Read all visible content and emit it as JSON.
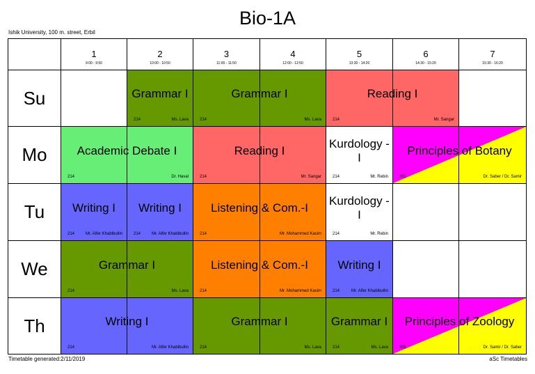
{
  "title": "Bio-1A",
  "institution": "Ishik University, 100 m. street, Erbil",
  "footer_left": "Timetable generated:2/11/2019",
  "footer_right": "aSc Timetables",
  "periods": [
    {
      "num": "1",
      "time": "9:00 - 9:50"
    },
    {
      "num": "2",
      "time": "10:00 - 10:50"
    },
    {
      "num": "3",
      "time": "11:00 - 11:50"
    },
    {
      "num": "4",
      "time": "12:00 - 12:50"
    },
    {
      "num": "5",
      "time": "13:30 - 14:20"
    },
    {
      "num": "6",
      "time": "14:30 - 15:20"
    },
    {
      "num": "7",
      "time": "15:30 - 16:20"
    }
  ],
  "days": [
    "Su",
    "Mo",
    "Tu",
    "We",
    "Th"
  ],
  "colors": {
    "green": "#669900",
    "salmon": "#ff6666",
    "lightgreen": "#66ee77",
    "blue": "#6666ff",
    "orange": "#ff8000",
    "yellow": "#ffff00",
    "magenta": "#ff00ff"
  },
  "lessons": [
    {
      "day": 0,
      "start": 1,
      "span": 1,
      "subject": "Grammar I",
      "room": "214",
      "teacher": "Ms. Lava",
      "color": "#669900"
    },
    {
      "day": 0,
      "start": 2,
      "span": 2,
      "subject": "Grammar I",
      "room": "214",
      "teacher": "Ms. Lava",
      "color": "#669900"
    },
    {
      "day": 0,
      "start": 4,
      "span": 2,
      "subject": "Reading I",
      "room": "214",
      "teacher": "Mr. Sangar",
      "color": "#ff6666"
    },
    {
      "day": 1,
      "start": 0,
      "span": 2,
      "subject": "Academic Debate I",
      "room": "214",
      "teacher": "Dr. Haval",
      "color": "#66ee77"
    },
    {
      "day": 1,
      "start": 2,
      "span": 2,
      "subject": "Reading I",
      "room": "214",
      "teacher": "Mr. Sangar",
      "color": "#ff6666"
    },
    {
      "day": 1,
      "start": 4,
      "span": 1,
      "subject": "Kurdology -I",
      "room": "214",
      "teacher": "Mr. Rebin",
      "color": "#ffffff"
    },
    {
      "day": 1,
      "start": 5,
      "span": 2,
      "subject": "Principles of Botany",
      "room": "301",
      "teacher": "Dr. Saber / Dr. Samir",
      "color": "split-yellow-magenta"
    },
    {
      "day": 2,
      "start": 0,
      "span": 1,
      "subject": "Writing I",
      "room": "214",
      "teacher": "Mr. Alfer Khabibullin",
      "color": "#6666ff"
    },
    {
      "day": 2,
      "start": 1,
      "span": 1,
      "subject": "Writing I",
      "room": "214",
      "teacher": "Mr. Alfer Khabibullin",
      "color": "#6666ff"
    },
    {
      "day": 2,
      "start": 2,
      "span": 2,
      "subject": "Listening & Com.-I",
      "room": "214",
      "teacher": "Mr. Mohammed Kasim",
      "color": "#ff8000"
    },
    {
      "day": 2,
      "start": 4,
      "span": 1,
      "subject": "Kurdology -I",
      "room": "214",
      "teacher": "Mr. Rebin",
      "color": "#ffffff"
    },
    {
      "day": 3,
      "start": 0,
      "span": 2,
      "subject": "Grammar I",
      "room": "214",
      "teacher": "Ms. Lava",
      "color": "#669900"
    },
    {
      "day": 3,
      "start": 2,
      "span": 2,
      "subject": "Listening & Com.-I",
      "room": "214",
      "teacher": "Mr. Mohammed Kasim",
      "color": "#ff8000"
    },
    {
      "day": 3,
      "start": 4,
      "span": 1,
      "subject": "Writing I",
      "room": "214",
      "teacher": "Mr. Alfer Khabibullin",
      "color": "#6666ff"
    },
    {
      "day": 4,
      "start": 0,
      "span": 2,
      "subject": "Writing I",
      "room": "214",
      "teacher": "Mr. Alfer Khabibullin",
      "color": "#6666ff"
    },
    {
      "day": 4,
      "start": 2,
      "span": 2,
      "subject": "Grammar I",
      "room": "214",
      "teacher": "Ms. Lava",
      "color": "#669900"
    },
    {
      "day": 4,
      "start": 4,
      "span": 1,
      "subject": "Grammar I",
      "room": "214",
      "teacher": "Ms. Lava",
      "color": "#669900"
    },
    {
      "day": 4,
      "start": 5,
      "span": 2,
      "subject": "Principles of Zoology",
      "room": "305",
      "teacher": "Dr. Samir / Dr. Saber",
      "color": "split-magenta-yellow"
    }
  ]
}
